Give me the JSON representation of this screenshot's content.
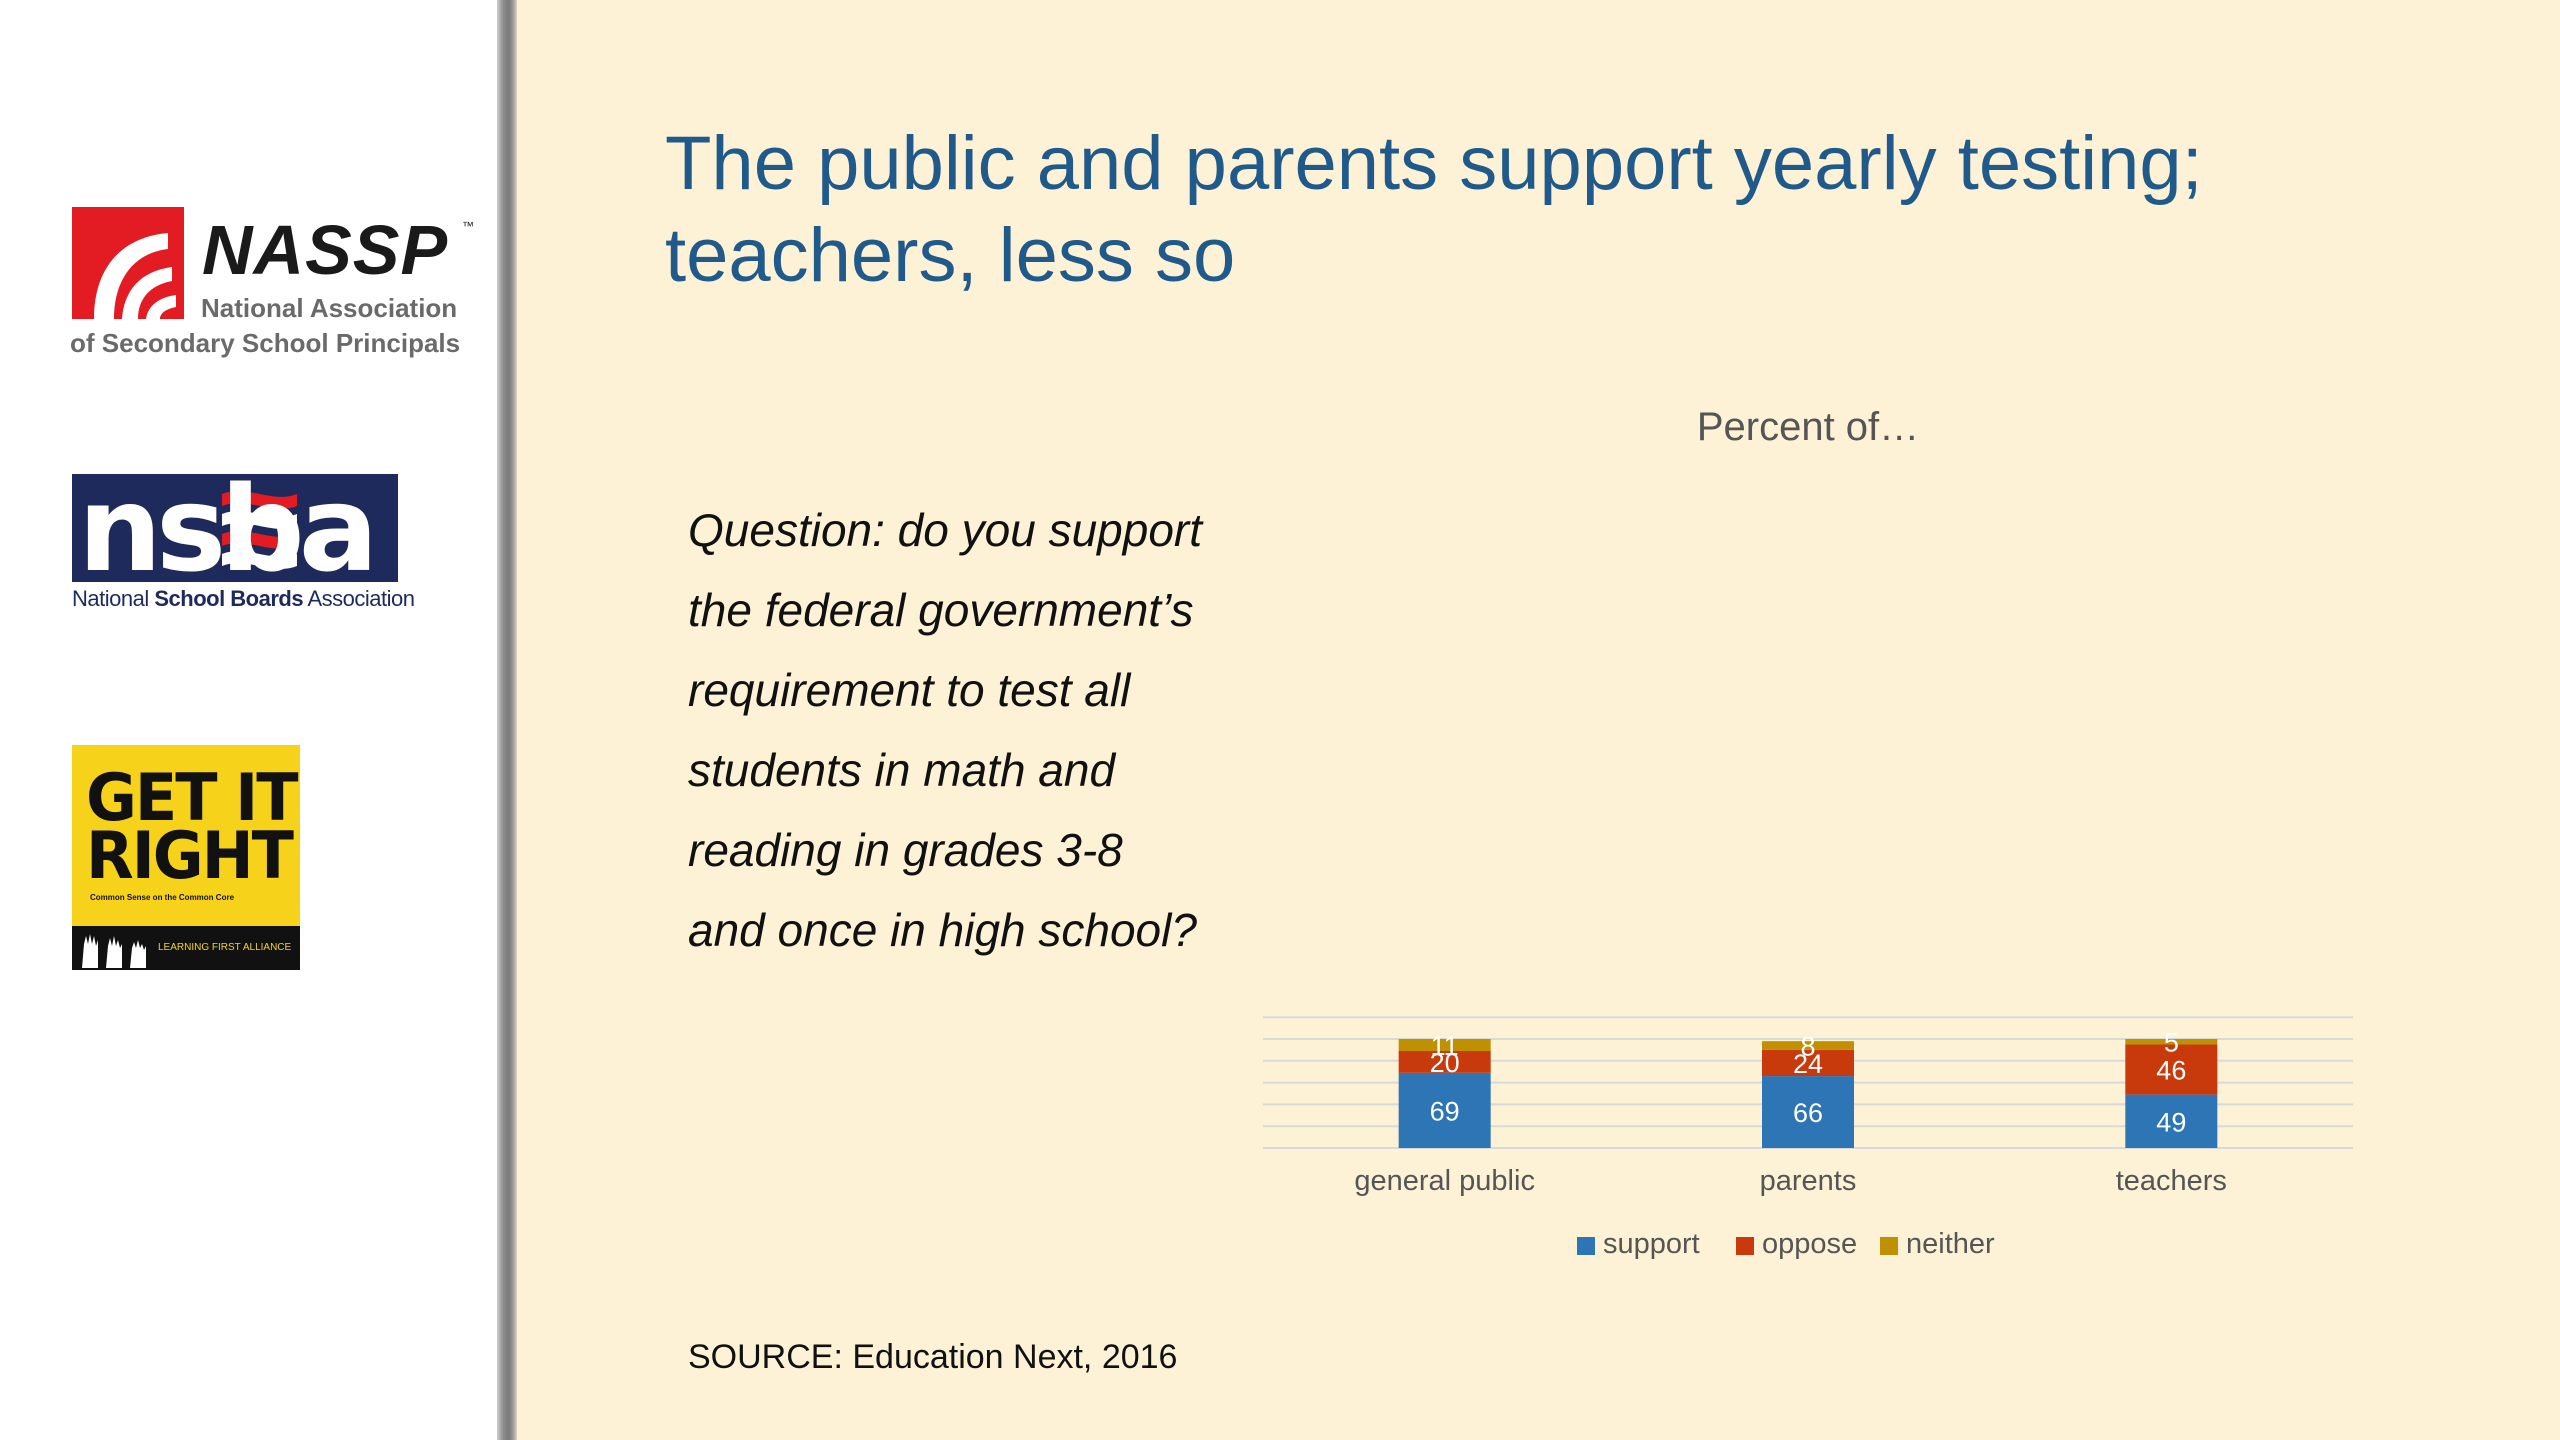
{
  "sidebar": {
    "nassp": {
      "name": "NASSP",
      "tm": "™",
      "line1": "National Association",
      "line2": "of Secondary School Principals"
    },
    "nsba": {
      "wordmark": "nsba",
      "sub_part1": "National ",
      "sub_part2": "School Boards",
      "sub_part3": " Association"
    },
    "get_it_right": {
      "line1": "GET IT",
      "line2": "RIGHT",
      "tagline": "Common Sense on the Common Core",
      "band": "LEARNING FIRST ALLIANCE"
    }
  },
  "slide": {
    "title_line1": "The public and parents support yearly testing;",
    "title_line2": "teachers, less so",
    "question": "Question: do you support the federal government’s requirement to test all students in math and reading in grades 3-8 and once in high school?",
    "source": "SOURCE: Education Next, 2016"
  },
  "colors": {
    "support": "#2e75b6",
    "oppose": "#c8390b",
    "neither": "#bf9000",
    "title": "#1f5a8a",
    "background": "#fdf1d6"
  },
  "chart_data": {
    "type": "bar",
    "stacked": true,
    "title": "Percent of…",
    "categories": [
      "general public",
      "parents",
      "teachers"
    ],
    "series": [
      {
        "name": "support",
        "values": [
          69,
          66,
          49
        ]
      },
      {
        "name": "oppose",
        "values": [
          20,
          24,
          46
        ]
      },
      {
        "name": "neither",
        "values": [
          11,
          8,
          5
        ]
      }
    ],
    "ylim": [
      0,
      120
    ],
    "grid": true,
    "legend": "bottom",
    "data_labels": true
  }
}
